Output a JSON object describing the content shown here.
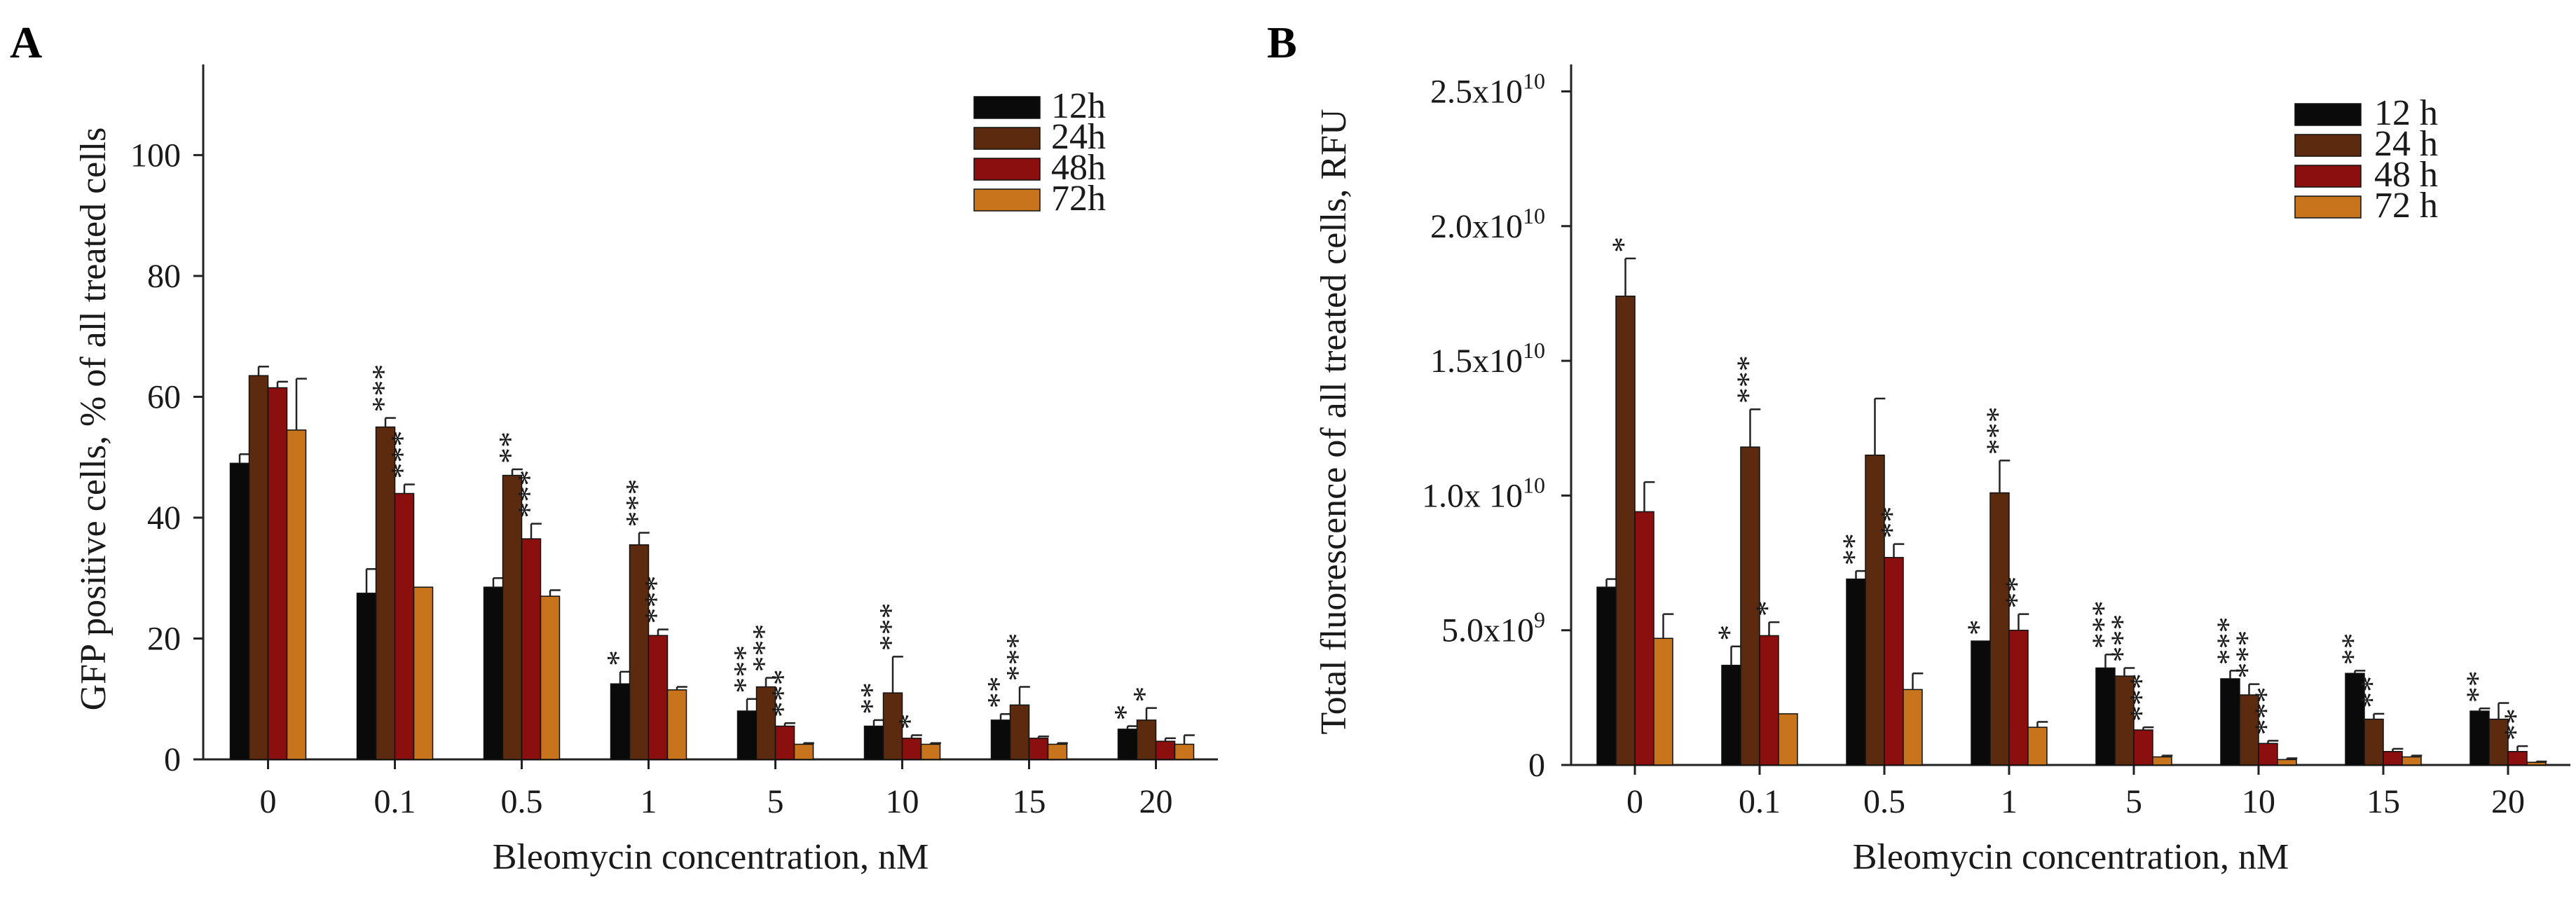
{
  "chart_data": [
    {
      "type": "bar",
      "panel_label": "A",
      "title": "",
      "xlabel": "Bleomycin concentration, nM",
      "ylabel": "GFP positive cells, % of all treated cells",
      "ylim": [
        0,
        115
      ],
      "yticks": [
        {
          "value": 0,
          "label": "0"
        },
        {
          "value": 20,
          "label": "20"
        },
        {
          "value": 40,
          "label": "40"
        },
        {
          "value": 60,
          "label": "60"
        },
        {
          "value": 80,
          "label": "80"
        },
        {
          "value": 100,
          "label": "100"
        }
      ],
      "categories": [
        "0",
        "0.1",
        "0.5",
        "1",
        "5",
        "10",
        "15",
        "20"
      ],
      "legend_position": "top-right",
      "series": [
        {
          "name": "12h",
          "color": "#0a0a0a",
          "values": [
            49,
            27.5,
            28.5,
            12.5,
            8,
            5.5,
            6.5,
            5
          ],
          "errors": [
            1.5,
            4,
            1.5,
            2,
            2,
            1,
            1,
            0.5
          ],
          "stars": [
            "",
            "",
            "",
            "*",
            "***",
            "**",
            "**",
            "*"
          ]
        },
        {
          "name": "24h",
          "color": "#5c2a0e",
          "values": [
            63.5,
            55,
            47,
            35.5,
            12,
            11,
            9,
            6.5
          ],
          "errors": [
            1.5,
            1.5,
            1,
            2,
            1.5,
            6,
            3,
            2
          ],
          "stars": [
            "",
            "***",
            "**",
            "***",
            "***",
            "***",
            "***",
            "*"
          ]
        },
        {
          "name": "48h",
          "color": "#8b0f0f",
          "values": [
            61.5,
            44,
            36.5,
            20.5,
            5.5,
            3.5,
            3.5,
            3
          ],
          "errors": [
            1,
            1.5,
            2.5,
            1,
            0.5,
            0.5,
            0.3,
            0.5
          ],
          "stars": [
            "",
            "***",
            "***",
            "***",
            "***",
            "*",
            "",
            ""
          ]
        },
        {
          "name": "72h",
          "color": "#c8741c",
          "values": [
            54.5,
            28.5,
            27,
            11.5,
            2.5,
            2.5,
            2.5,
            2.5
          ],
          "errors": [
            8.5,
            0,
            1,
            0.5,
            0.2,
            0.2,
            0.2,
            1.5
          ],
          "stars": [
            "",
            "",
            "",
            "",
            "",
            "",
            "",
            ""
          ]
        }
      ]
    },
    {
      "type": "bar",
      "panel_label": "B",
      "title": "",
      "xlabel": "Bleomycin concentration, nM",
      "ylabel": "Total fluorescence of all treated cells, RFU",
      "ylim": [
        0,
        26000000000
      ],
      "yticks": [
        {
          "value": 0,
          "mantissa": "0",
          "exp": ""
        },
        {
          "value": 5000000000,
          "mantissa": "5.0x10",
          "exp": "9"
        },
        {
          "value": 10000000000,
          "mantissa": "1.0x 10",
          "exp": "10"
        },
        {
          "value": 15000000000,
          "mantissa": "1.5x10",
          "exp": "10"
        },
        {
          "value": 20000000000,
          "mantissa": "2.0x10",
          "exp": "10"
        },
        {
          "value": 25000000000,
          "mantissa": "2.5x10",
          "exp": "10"
        }
      ],
      "categories": [
        "0",
        "0.1",
        "0.5",
        "1",
        "5",
        "10",
        "15",
        "20"
      ],
      "legend_position": "top-right",
      "series": [
        {
          "name": "12 h",
          "color": "#0a0a0a",
          "values": [
            6600000000,
            3700000000,
            6900000000,
            4600000000,
            3600000000,
            3200000000,
            3400000000,
            2000000000
          ],
          "errors": [
            300000000,
            700000000,
            300000000,
            0,
            500000000,
            300000000,
            100000000,
            100000000
          ],
          "stars": [
            "",
            "*",
            "**",
            "*",
            "***",
            "***",
            "**",
            "**"
          ]
        },
        {
          "name": "24 h",
          "color": "#5c2a0e",
          "values": [
            17400000000,
            11800000000,
            11500000000,
            10100000000,
            3300000000,
            2600000000,
            1700000000,
            1700000000
          ],
          "errors": [
            1400000000,
            1400000000,
            2100000000,
            1200000000,
            300000000,
            400000000,
            200000000,
            600000000
          ],
          "stars": [
            "*",
            "***",
            "",
            "***",
            "***",
            "***",
            "**",
            ""
          ]
        },
        {
          "name": "48 h",
          "color": "#8b0f0f",
          "values": [
            9400000000,
            4800000000,
            7700000000,
            5000000000,
            1300000000,
            800000000,
            500000000,
            500000000
          ],
          "errors": [
            1100000000,
            500000000,
            500000000,
            600000000,
            100000000,
            100000000,
            100000000,
            200000000
          ],
          "stars": [
            "",
            "*",
            "**",
            "**",
            "***",
            "***",
            "",
            "**"
          ]
        },
        {
          "name": "72 h",
          "color": "#c8741c",
          "values": [
            4700000000,
            1900000000,
            2800000000,
            1400000000,
            300000000,
            200000000,
            300000000,
            100000000
          ],
          "errors": [
            900000000,
            0,
            600000000,
            200000000,
            50000000,
            50000000,
            50000000,
            30000000
          ],
          "stars": [
            "",
            "",
            "",
            "",
            "",
            "",
            "",
            ""
          ]
        }
      ]
    }
  ]
}
